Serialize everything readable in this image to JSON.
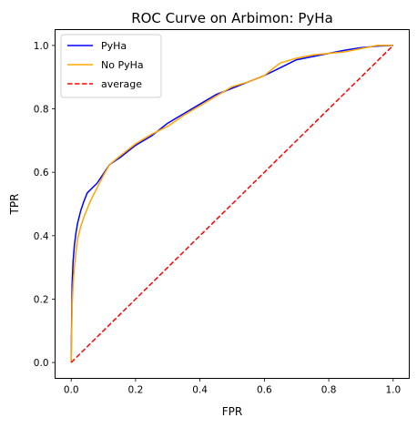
{
  "chart_data": {
    "type": "line",
    "title": "ROC Curve on Arbimon: PyHa",
    "xlabel": "FPR",
    "ylabel": "TPR",
    "xlim": [
      -0.05,
      1.05
    ],
    "ylim": [
      -0.05,
      1.05
    ],
    "x_ticks": [
      "0.0",
      "0.2",
      "0.4",
      "0.6",
      "0.8",
      "1.0"
    ],
    "y_ticks": [
      "0.0",
      "0.2",
      "0.4",
      "0.6",
      "0.8",
      "1.0"
    ],
    "grid": false,
    "legend_position": "upper-left",
    "series": [
      {
        "name": "PyHa",
        "color": "#0000ff",
        "style": "solid",
        "x": [
          0.0,
          0.003,
          0.006,
          0.01,
          0.015,
          0.02,
          0.025,
          0.03,
          0.04,
          0.05,
          0.06,
          0.08,
          0.1,
          0.12,
          0.15,
          0.2,
          0.25,
          0.3,
          0.35,
          0.4,
          0.45,
          0.5,
          0.55,
          0.6,
          0.65,
          0.7,
          0.75,
          0.8,
          0.85,
          0.9,
          0.95,
          1.0
        ],
        "y": [
          0.0,
          0.25,
          0.32,
          0.37,
          0.41,
          0.44,
          0.46,
          0.48,
          0.51,
          0.535,
          0.545,
          0.565,
          0.595,
          0.625,
          0.645,
          0.685,
          0.715,
          0.755,
          0.785,
          0.815,
          0.845,
          0.865,
          0.885,
          0.905,
          0.93,
          0.955,
          0.965,
          0.975,
          0.985,
          0.993,
          0.998,
          1.0
        ]
      },
      {
        "name": "No PyHa",
        "color": "#ffa500",
        "style": "solid",
        "x": [
          0.0,
          0.003,
          0.006,
          0.01,
          0.015,
          0.02,
          0.03,
          0.04,
          0.05,
          0.06,
          0.08,
          0.1,
          0.12,
          0.15,
          0.2,
          0.25,
          0.3,
          0.35,
          0.4,
          0.45,
          0.5,
          0.55,
          0.6,
          0.63,
          0.65,
          0.7,
          0.75,
          0.8,
          0.85,
          0.9,
          0.95,
          1.0
        ],
        "y": [
          0.0,
          0.18,
          0.25,
          0.3,
          0.35,
          0.39,
          0.43,
          0.46,
          0.485,
          0.51,
          0.55,
          0.59,
          0.625,
          0.65,
          0.69,
          0.72,
          0.745,
          0.78,
          0.81,
          0.84,
          0.87,
          0.885,
          0.905,
          0.93,
          0.945,
          0.96,
          0.97,
          0.975,
          0.98,
          0.99,
          1.0,
          1.0
        ]
      },
      {
        "name": "average",
        "color": "#ff0000",
        "style": "dashed",
        "x": [
          0.0,
          1.0
        ],
        "y": [
          0.0,
          1.0
        ]
      }
    ]
  }
}
